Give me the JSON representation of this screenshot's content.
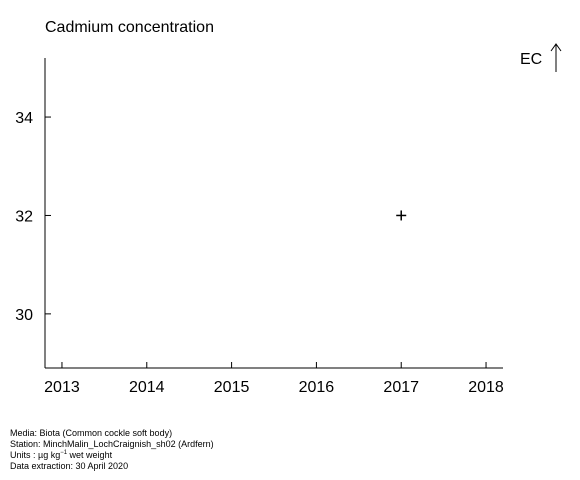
{
  "chart_data": {
    "type": "scatter",
    "title": "Cadmium concentration",
    "xlabel": "",
    "ylabel": "",
    "xlim": [
      2012.8,
      2018.2
    ],
    "ylim": [
      28.9,
      35.2
    ],
    "x_ticks": [
      2013,
      2014,
      2015,
      2016,
      2017,
      2018
    ],
    "y_ticks": [
      30,
      32,
      34
    ],
    "series": [
      {
        "marker": "plus",
        "color": "#000000",
        "points": [
          {
            "x": 2017,
            "y": 32
          }
        ]
      }
    ],
    "annotation": {
      "text": "EC",
      "icon": "up-arrow-icon"
    },
    "grid": false
  },
  "footer": {
    "media": "Media: Biota (Common cockle soft body)",
    "station": "Station: MinchMalin_LochCraignish_sh02 (Ardfern)",
    "units_prefix": "Units :  µg kg",
    "units_exp": "−1",
    "units_suffix": " wet weight",
    "extraction": "Data extraction: 30 April 2020"
  }
}
